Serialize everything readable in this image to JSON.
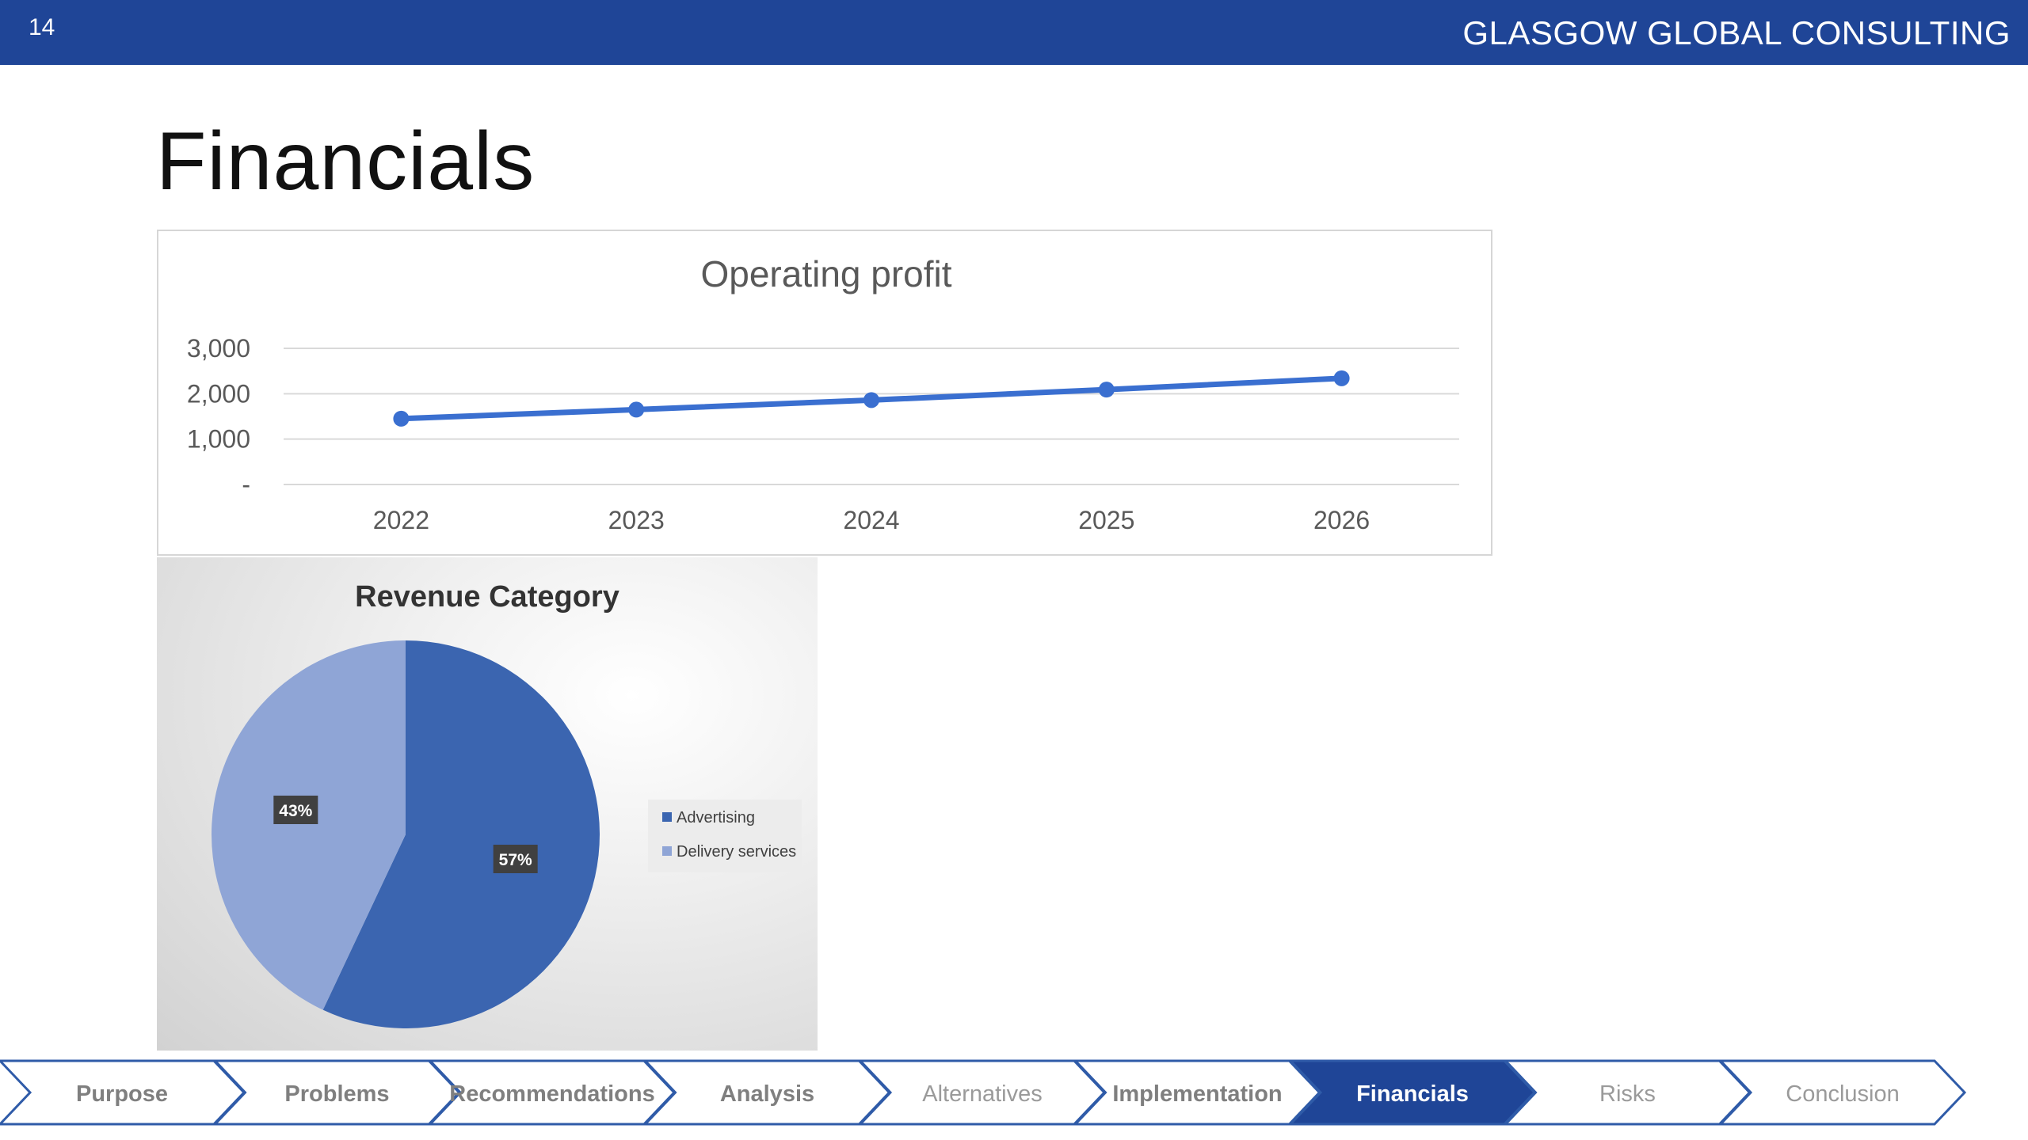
{
  "header": {
    "slide_number": "14",
    "company": "GLASGOW GLOBAL CONSULTING"
  },
  "page_title": "Financials",
  "chart_data": [
    {
      "type": "line",
      "title": "Operating profit",
      "categories": [
        "2022",
        "2023",
        "2024",
        "2025",
        "2026"
      ],
      "series": [
        {
          "values": [
            1450,
            1650,
            1860,
            2090,
            2340
          ]
        }
      ],
      "yticks": [
        "-",
        "1,000",
        "2,000",
        "3,000"
      ],
      "ytick_values": [
        0,
        1000,
        2000,
        3000
      ],
      "ylim": [
        0,
        3000
      ],
      "grid": true,
      "color": "#3a6fd0"
    },
    {
      "type": "pie",
      "title": "Revenue Category",
      "labels": [
        "Advertising",
        "Delivery services"
      ],
      "values": [
        57,
        43
      ],
      "data_labels": [
        "57%",
        "43%"
      ],
      "colors": [
        "#3b65b0",
        "#8fa5d6"
      ],
      "legend": "right"
    }
  ],
  "nav": {
    "items": [
      {
        "label": "Purpose",
        "active": false,
        "muted": false
      },
      {
        "label": "Problems",
        "active": false,
        "muted": false
      },
      {
        "label": "Recommendations",
        "active": false,
        "muted": false
      },
      {
        "label": "Analysis",
        "active": false,
        "muted": false
      },
      {
        "label": "Alternatives",
        "active": false,
        "muted": true
      },
      {
        "label": "Implementation",
        "active": false,
        "muted": false
      },
      {
        "label": "Financials",
        "active": true,
        "muted": false
      },
      {
        "label": "Risks",
        "active": false,
        "muted": true
      },
      {
        "label": "Conclusion",
        "active": false,
        "muted": true
      }
    ],
    "active_color": "#1f4597",
    "border_color": "#2f5ba8"
  }
}
